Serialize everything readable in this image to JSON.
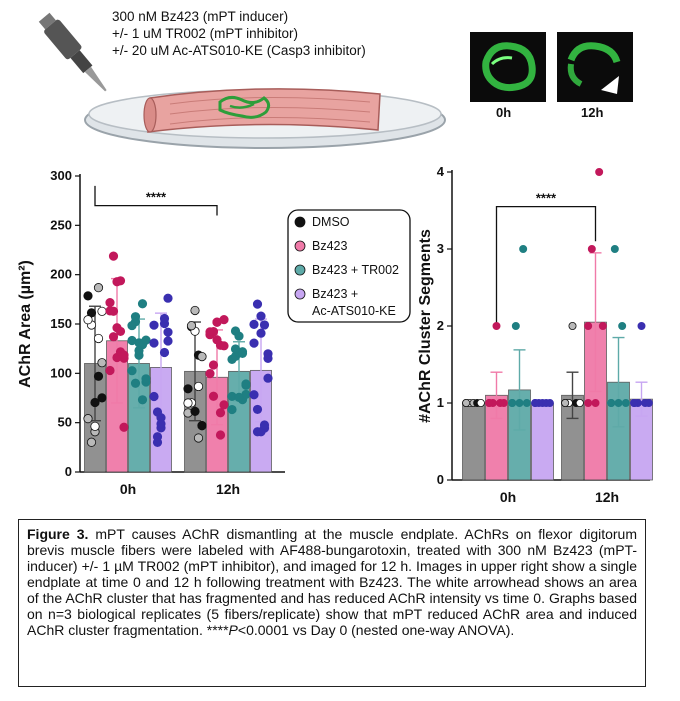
{
  "treatment": {
    "line1": "300 nM Bz423 (mPT inducer)",
    "line2": "+/- 1 uM TR002 (mPT inhibitor)",
    "line3": "+/- 20 uM Ac-ATS010-KE (Casp3 inhibitor)"
  },
  "micrographs": {
    "label_0h": "0h",
    "label_12h": "12h"
  },
  "colors": {
    "dmso": "#8c8c8c",
    "bz423": "#f07aa8",
    "bz423_tr002": "#5eaaa8",
    "bz423_ac": "#c7a6f2",
    "dot_dmso": "#111111",
    "dot_bz423": "#c2185b",
    "dot_tr002": "#1f7f82",
    "dot_ac": "#3a2fb0"
  },
  "chart_data": [
    {
      "type": "bar",
      "ylabel": "AChR Area (µm²)",
      "ylim": [
        0,
        300
      ],
      "yticks": [
        "0",
        "50",
        "100",
        "150",
        "200",
        "250",
        "300"
      ],
      "categories": [
        "0h",
        "12h"
      ],
      "series": [
        {
          "name": "DMSO",
          "values": [
            110,
            102
          ],
          "error": [
            58,
            50
          ]
        },
        {
          "name": "Bz423",
          "values": [
            133,
            96
          ],
          "error": [
            63,
            48
          ]
        },
        {
          "name": "Bz423 + TR002",
          "values": [
            110,
            102
          ],
          "error": [
            45,
            30
          ]
        },
        {
          "name": "Bz423 + Ac-ATS010-KE",
          "values": [
            106,
            103
          ],
          "error": [
            55,
            52
          ]
        }
      ],
      "significance": "****",
      "legend": [
        "DMSO",
        "Bz423",
        "Bz423 + TR002",
        "Bz423 +",
        "Ac-ATS010-KE"
      ]
    },
    {
      "type": "bar",
      "ylabel": "#AChR Cluster Segments",
      "ylim": [
        0,
        4
      ],
      "yticks": [
        "0",
        "1",
        "2",
        "3",
        "4"
      ],
      "categories": [
        "0h",
        "12h"
      ],
      "series": [
        {
          "name": "DMSO",
          "values": [
            1.0,
            1.1
          ],
          "error": [
            0.0,
            0.3
          ]
        },
        {
          "name": "Bz423",
          "values": [
            1.1,
            2.05
          ],
          "error": [
            0.3,
            0.9
          ]
        },
        {
          "name": "Bz423 + TR002",
          "values": [
            1.17,
            1.27
          ],
          "error": [
            0.52,
            0.58
          ]
        },
        {
          "name": "Bz423 + Ac-ATS010-KE",
          "values": [
            1.0,
            1.05
          ],
          "error": [
            0.0,
            0.22
          ]
        }
      ],
      "significance": "****"
    }
  ],
  "caption": {
    "fig_label": "Figure 3.",
    "text": " mPT causes AChR dismantling at the muscle endplate. AChRs on flexor digitorum brevis muscle fibers were labeled with AF488-bungarotoxin, treated with 300 nM Bz423 (mPT-inducer) +/- 1 µM TR002 (mPT inhibitor), and imaged for 12 h. Images in upper right show a single endplate at time 0 and 12 h following treatment with Bz423. The white arrowhead shows an area of the AChR cluster that has fragmented and has reduced AChR intensity vs time 0. Graphs based on n=3 biological replicates (5 fibers/replicate) show that mPT reduced AChR area and induced AChR cluster fragmentation. ****",
    "p_italic": "P",
    "p_rest": "<0.0001 vs Day 0 (nested one-way ANOVA)."
  }
}
